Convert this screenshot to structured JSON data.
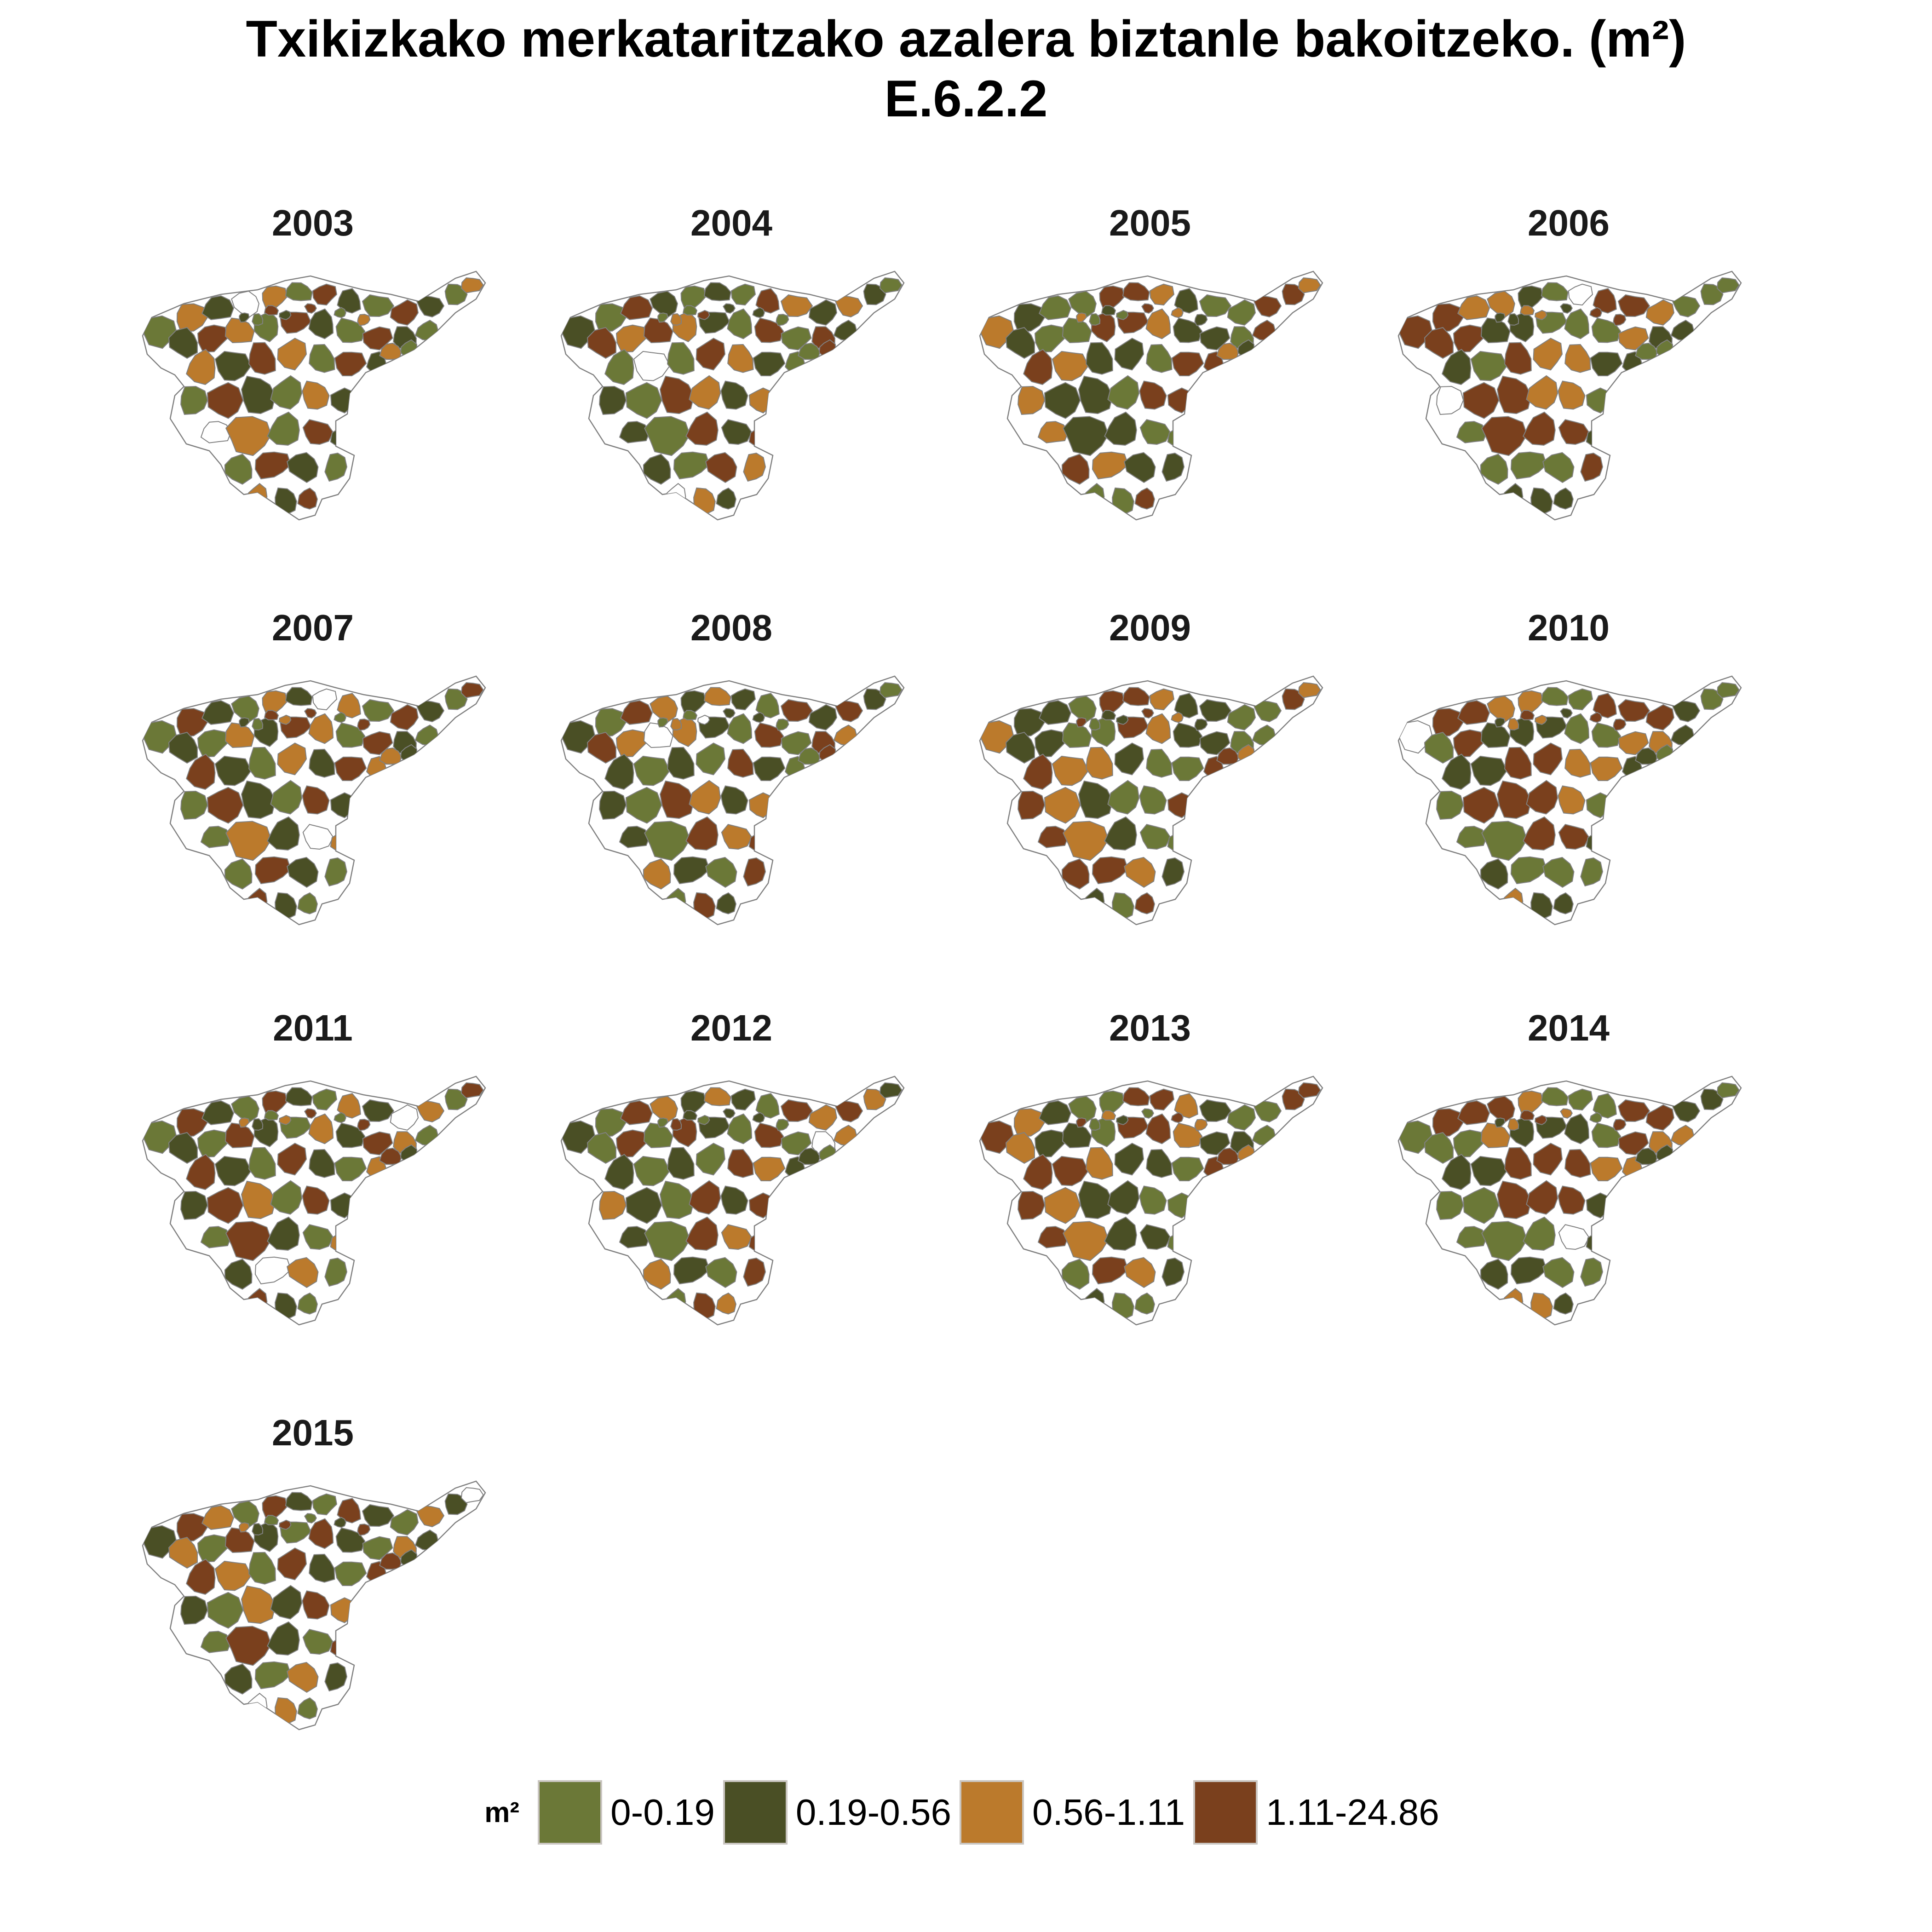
{
  "title": {
    "line1": "Txikizkako merkataritzako azalera biztanle bakoitzeko. (m²)",
    "line2": "E.6.2.2"
  },
  "chart_data": {
    "type": "choropleth-small-multiples",
    "panels": [
      "2003",
      "2004",
      "2005",
      "2006",
      "2007",
      "2008",
      "2009",
      "2010",
      "2011",
      "2012",
      "2013",
      "2014",
      "2015"
    ],
    "legend": {
      "title": "m²",
      "position": "bottom",
      "classes": [
        {
          "label": "0-0.19",
          "color": "#6b7837"
        },
        {
          "label": "0.19-0.56",
          "color": "#4a4f25"
        },
        {
          "label": "0.56-1.11",
          "color": "#bb7a2c"
        },
        {
          "label": "1.11-24.86",
          "color": "#7a401d"
        }
      ],
      "no_data_color": "#ffffff"
    },
    "border_color": "#808080"
  }
}
